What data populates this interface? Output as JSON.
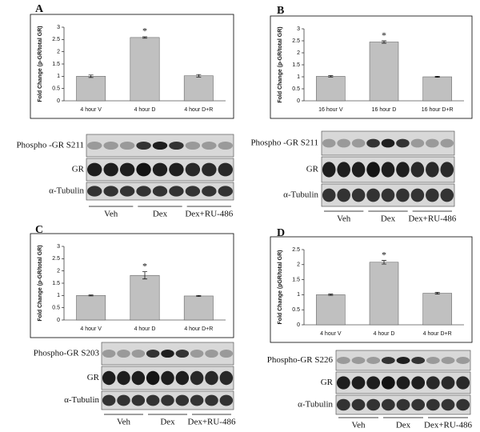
{
  "chart_data": [
    {
      "type": "bar",
      "panel": "A",
      "ylabel": "Fold Change (p-GR/total GR)",
      "categories": [
        "4 hour V",
        "4 hour D",
        "4 hour D+R"
      ],
      "values": [
        1.0,
        2.58,
        1.02
      ],
      "errors": [
        0.05,
        0.03,
        0.05
      ],
      "color": "#c0c0c0",
      "ylim": [
        0,
        3
      ],
      "yticks": [
        0,
        0.5,
        1,
        1.5,
        2,
        2.5,
        3
      ],
      "annotations": [
        {
          "category": "4 hour D",
          "text": "*"
        }
      ]
    },
    {
      "type": "bar",
      "panel": "B",
      "ylabel": "Fold Change (p-GR/total GR)",
      "categories": [
        "16 hour V",
        "16 hour D",
        "16 hour D+R"
      ],
      "values": [
        1.02,
        2.45,
        1.0
      ],
      "errors": [
        0.03,
        0.05,
        0.02
      ],
      "color": "#c0c0c0",
      "ylim": [
        0,
        3
      ],
      "yticks": [
        0,
        0.5,
        1,
        1.5,
        2,
        2.5,
        3
      ],
      "annotations": [
        {
          "category": "16 hour D",
          "text": "*"
        }
      ]
    },
    {
      "type": "bar",
      "panel": "C",
      "ylabel": "Fold Change (p-GR/total GR)",
      "categories": [
        "4 hour V",
        "4 hour D",
        "4 hour D+R"
      ],
      "values": [
        1.0,
        1.82,
        0.98
      ],
      "errors": [
        0.02,
        0.15,
        0.02
      ],
      "color": "#c0c0c0",
      "ylim": [
        0,
        3
      ],
      "yticks": [
        0,
        0.5,
        1,
        1.5,
        2,
        2.5,
        3
      ],
      "annotations": [
        {
          "category": "4 hour D",
          "text": "*"
        }
      ]
    },
    {
      "type": "bar",
      "panel": "D",
      "ylabel": "Fold Change (pGR/total GR)",
      "categories": [
        "4 hour V",
        "4 hour D",
        "4 hour D+R"
      ],
      "values": [
        1.0,
        2.08,
        1.05
      ],
      "errors": [
        0.02,
        0.06,
        0.03
      ],
      "color": "#c0c0c0",
      "ylim": [
        0,
        2.5
      ],
      "yticks": [
        0,
        0.5,
        1,
        1.5,
        2,
        2.5
      ],
      "annotations": [
        {
          "category": "4 hour D",
          "text": "*"
        }
      ]
    }
  ],
  "blots": [
    {
      "rows": [
        "Phospho -GR S211",
        "GR",
        "α-Tubulin"
      ],
      "groups": [
        "Veh",
        "Dex",
        "Dex+RU-486"
      ]
    },
    {
      "rows": [
        "Phospho -GR S211",
        "GR",
        "α-Tubulin"
      ],
      "groups": [
        "Veh",
        "Dex",
        "Dex+RU-486"
      ]
    },
    {
      "rows": [
        "Phospho-GR S203",
        "GR",
        "α-Tubulin"
      ],
      "groups": [
        "Veh",
        "Dex",
        "Dex+RU-486"
      ]
    },
    {
      "rows": [
        "Phospho-GR S226",
        "GR",
        "α-Tubulin"
      ],
      "groups": [
        "Veh",
        "Dex",
        "Dex+RU-486"
      ]
    }
  ]
}
